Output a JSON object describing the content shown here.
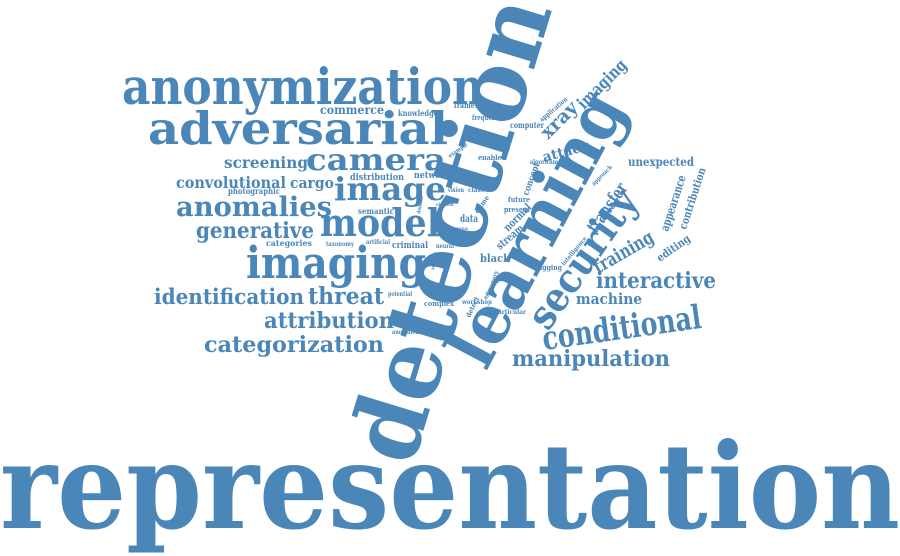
{
  "color": "#4a86b8",
  "words": [
    {
      "id": "representation",
      "text": "representation"
    },
    {
      "id": "detection",
      "text": "detection"
    },
    {
      "id": "learning",
      "text": "learning"
    },
    {
      "id": "anonymization",
      "text": "anonymization"
    },
    {
      "id": "adversarial",
      "text": "adversarial"
    },
    {
      "id": "camera",
      "text": "camera"
    },
    {
      "id": "image",
      "text": "image"
    },
    {
      "id": "model",
      "text": "model"
    },
    {
      "id": "imaging",
      "text": "imaging"
    },
    {
      "id": "anomalies",
      "text": "anomalies"
    },
    {
      "id": "generative",
      "text": "generative"
    },
    {
      "id": "convolutional",
      "text": "convolutional"
    },
    {
      "id": "screening",
      "text": "screening"
    },
    {
      "id": "cargo",
      "text": "cargo"
    },
    {
      "id": "identification",
      "text": "identification"
    },
    {
      "id": "threat",
      "text": "threat"
    },
    {
      "id": "attribution",
      "text": "attribution"
    },
    {
      "id": "categorization",
      "text": "categorization"
    },
    {
      "id": "security",
      "text": "security"
    },
    {
      "id": "conditional",
      "text": "conditional"
    },
    {
      "id": "manipulation",
      "text": "manipulation"
    },
    {
      "id": "interactive",
      "text": "interactive"
    },
    {
      "id": "machine",
      "text": "machine"
    },
    {
      "id": "training",
      "text": "training"
    },
    {
      "id": "transfer",
      "text": "transfer"
    },
    {
      "id": "xray",
      "text": "xray"
    },
    {
      "id": "imaging-small",
      "text": "imaging"
    },
    {
      "id": "attack",
      "text": "attack"
    },
    {
      "id": "unexpected",
      "text": "unexpected"
    },
    {
      "id": "appearance",
      "text": "appearance"
    },
    {
      "id": "contribution",
      "text": "contribution"
    },
    {
      "id": "editing",
      "text": "editing"
    },
    {
      "id": "commerce",
      "text": "commerce"
    },
    {
      "id": "knowledge",
      "text": "knowledge"
    },
    {
      "id": "framework",
      "text": "framework"
    },
    {
      "id": "frequency",
      "text": "frequency"
    },
    {
      "id": "computer",
      "text": "computer"
    },
    {
      "id": "application",
      "text": "application"
    },
    {
      "id": "photographic",
      "text": "photographic"
    },
    {
      "id": "distribution",
      "text": "distribution"
    },
    {
      "id": "network",
      "text": "network"
    },
    {
      "id": "semantic",
      "text": "semantic"
    },
    {
      "id": "categories",
      "text": "categories"
    },
    {
      "id": "taxonomy",
      "text": "taxonomy"
    },
    {
      "id": "artificial",
      "text": "artificial"
    },
    {
      "id": "criminal",
      "text": "criminal"
    },
    {
      "id": "neural",
      "text": "neural"
    },
    {
      "id": "data",
      "text": "data"
    },
    {
      "id": "black",
      "text": "black"
    },
    {
      "id": "stream",
      "text": "stream"
    },
    {
      "id": "normal",
      "text": "normal"
    },
    {
      "id": "present",
      "text": "present"
    },
    {
      "id": "future",
      "text": "future"
    },
    {
      "id": "concept",
      "text": "concept"
    },
    {
      "id": "enabled",
      "text": "enabled"
    },
    {
      "id": "algorithm",
      "text": "algorithm"
    },
    {
      "id": "vision",
      "text": "vision"
    },
    {
      "id": "class",
      "text": "class"
    },
    {
      "id": "crime",
      "text": "crime"
    },
    {
      "id": "bagging",
      "text": "bagging"
    },
    {
      "id": "intelligence",
      "text": "intelligence"
    },
    {
      "id": "complex",
      "text": "complex"
    },
    {
      "id": "workshop",
      "text": "workshop"
    },
    {
      "id": "particular",
      "text": "particular"
    },
    {
      "id": "potential",
      "text": "potential"
    },
    {
      "id": "anomalous",
      "text": "anomalous"
    },
    {
      "id": "approach",
      "text": "approach"
    },
    {
      "id": "example",
      "text": "example"
    },
    {
      "id": "artifact",
      "text": "artifact"
    },
    {
      "id": "detect",
      "text": "detect"
    },
    {
      "id": "imagery",
      "text": "imagery"
    },
    {
      "id": "element",
      "text": "element"
    },
    {
      "id": "domain",
      "text": "domain"
    },
    {
      "id": "setting",
      "text": "setting"
    },
    {
      "id": "object",
      "text": "object"
    },
    {
      "id": "area",
      "text": "area"
    }
  ]
}
